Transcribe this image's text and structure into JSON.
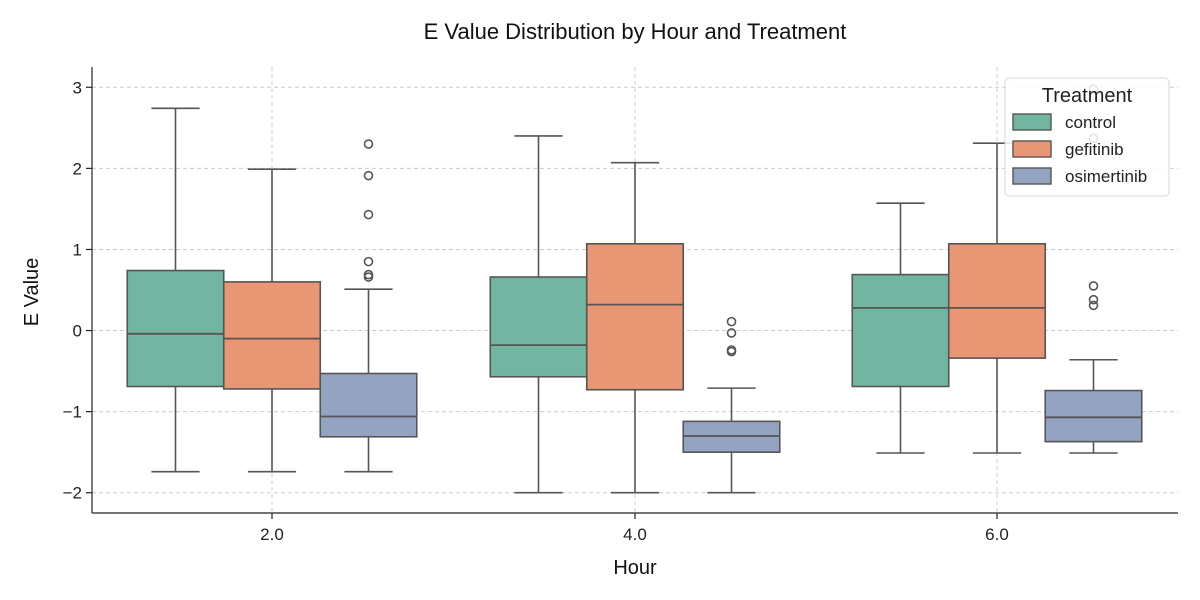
{
  "chart_data": {
    "type": "box",
    "title": "E Value Distribution by Hour and Treatment",
    "xlabel": "Hour",
    "ylabel": "E Value",
    "categories": [
      "2.0",
      "4.0",
      "6.0"
    ],
    "ylim": [
      -2.25,
      3.25
    ],
    "yticks": [
      -2,
      -1,
      0,
      1,
      2,
      3
    ],
    "ytick_labels": [
      "−2",
      "−1",
      "0",
      "1",
      "2",
      "3"
    ],
    "grid": true,
    "legend": {
      "title": "Treatment",
      "placement": "top-right"
    },
    "series": [
      {
        "name": "control",
        "color": "#72b6a1",
        "boxes": [
          {
            "whisker_low": -1.74,
            "q1": -0.69,
            "median": -0.04,
            "q3": 0.74,
            "whisker_high": 2.74,
            "outliers": []
          },
          {
            "whisker_low": -2.0,
            "q1": -0.57,
            "median": -0.18,
            "q3": 0.66,
            "whisker_high": 2.4,
            "outliers": []
          },
          {
            "whisker_low": -1.51,
            "q1": -0.69,
            "median": 0.28,
            "q3": 0.69,
            "whisker_high": 1.57,
            "outliers": []
          }
        ]
      },
      {
        "name": "gefitinib",
        "color": "#e99675",
        "boxes": [
          {
            "whisker_low": -1.74,
            "q1": -0.72,
            "median": -0.1,
            "q3": 0.6,
            "whisker_high": 1.99,
            "outliers": []
          },
          {
            "whisker_low": -2.0,
            "q1": -0.73,
            "median": 0.32,
            "q3": 1.07,
            "whisker_high": 2.07,
            "outliers": []
          },
          {
            "whisker_low": -1.51,
            "q1": -0.34,
            "median": 0.28,
            "q3": 1.07,
            "whisker_high": 2.31,
            "outliers": []
          }
        ]
      },
      {
        "name": "osimertinib",
        "color": "#95a3c3",
        "boxes": [
          {
            "whisker_low": -1.74,
            "q1": -1.31,
            "median": -1.06,
            "q3": -0.53,
            "whisker_high": 0.51,
            "outliers": [
              0.66,
              0.69,
              0.85,
              1.43,
              1.91,
              2.3
            ]
          },
          {
            "whisker_low": -2.0,
            "q1": -1.5,
            "median": -1.3,
            "q3": -1.12,
            "whisker_high": -0.71,
            "outliers": [
              -0.26,
              -0.24,
              -0.03,
              0.11
            ]
          },
          {
            "whisker_low": -1.51,
            "q1": -1.37,
            "median": -1.07,
            "q3": -0.74,
            "whisker_high": -0.36,
            "outliers": [
              0.31,
              0.38,
              0.55,
              2.37,
              2.98
            ]
          }
        ]
      }
    ]
  }
}
